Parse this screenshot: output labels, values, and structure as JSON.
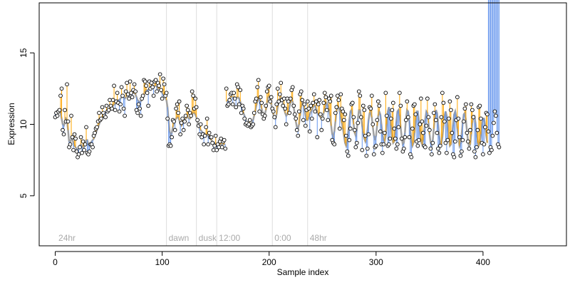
{
  "chart_data": {
    "type": "scatter",
    "title": "",
    "xlabel": "Sample index",
    "ylabel": "Expression",
    "xlim": [
      -15,
      478
    ],
    "ylim": [
      1.5,
      18.5
    ],
    "x_ticks": [
      0,
      100,
      200,
      300,
      400
    ],
    "y_ticks": [
      5,
      10,
      15
    ],
    "grid": false,
    "colors": {
      "fit_line": "#a0a0a0",
      "residual_above": "#ffa500",
      "residual_below": "#6495ed",
      "point_fill": "#ffffff",
      "point_stroke": "#000000",
      "marker_line": "#dddddd",
      "annotation_text": "#aaaaaa"
    },
    "markers": [
      {
        "x": 104,
        "label": "dawn"
      },
      {
        "x": 132,
        "label": "dusk"
      },
      {
        "x": 151,
        "label": "12:00"
      },
      {
        "x": 203,
        "label": "0:00"
      },
      {
        "x": 236,
        "label": "48hr"
      }
    ],
    "corner_label": {
      "x": 3,
      "label": "24hr"
    },
    "series": [
      {
        "x_start": 0,
        "values": [
          10.5,
          10.8,
          10.6,
          10.9,
          11.0,
          12.0,
          12.5,
          9.6,
          9.3,
          11.0,
          10.2,
          12.8,
          10.2,
          8.4,
          8.6,
          10.6,
          9.1,
          8.2,
          9.3,
          9.0,
          8.1,
          7.7,
          7.9,
          8.4,
          9.1,
          8.0,
          8.8,
          8.2,
          8.6,
          9.8,
          8.0,
          7.9,
          8.1,
          8.6,
          8.6,
          8.4,
          9.2,
          9.4,
          9.7,
          9.8,
          10.2,
          10.8,
          10.3,
          10.4,
          11.2,
          10.8,
          10.6,
          10.5,
          11.3,
          10.9,
          11.0,
          11.7,
          11.3,
          11.1,
          11.7,
          12.7,
          11.0,
          11.6,
          12.2,
          11.5,
          10.9,
          11.4,
          12.6,
          12.0,
          11.1,
          10.6,
          12.3,
          12.9,
          12.1,
          11.8,
          13.0,
          12.2,
          11.9,
          12.4,
          12.8,
          12.3,
          11.0,
          10.8,
          11.4,
          11.1,
          10.6,
          11.8,
          12.0,
          13.1,
          13.0,
          12.7,
          12.2,
          11.3,
          13.0,
          12.5,
          12.9,
          12.6,
          12.0,
          13.0,
          13.1,
          12.3,
          12.9,
          12.7,
          13.5,
          12.4,
          11.8,
          13.2,
          12.8,
          12.0,
          12.2,
          10.4,
          8.5,
          8.6,
          8.5,
          9.1,
          10.3,
          10.2,
          9.6,
          11.1,
          11.4,
          10.8,
          11.6,
          9.3,
          10.1,
          10.4,
          9.6,
          10.2,
          10.6,
          11.3,
          11.0,
          10.0,
          10.8,
          10.6,
          12.3,
          12.0,
          11.1,
          11.8,
          11.2,
          10.3,
          9.9,
          9.3,
          10.0,
          9.1,
          9.3,
          8.6,
          9.2,
          9.8,
          10.4,
          8.6,
          9.4,
          9.1,
          9.1,
          8.7,
          8.2,
          8.5,
          9.2,
          8.2,
          8.6,
          8.4,
          8.8,
          9.0,
          8.4,
          8.8,
          8.9,
          8.3,
          12.5,
          11.3,
          11.4,
          11.7,
          12.1,
          12.2,
          11.4,
          12.2,
          11.8,
          11.2,
          12.8,
          12.6,
          11.4,
          12.4,
          10.8,
          11.3,
          11.1,
          10.4,
          10.0,
          10.1,
          9.9,
          10.0,
          10.3,
          9.8,
          9.9,
          10.0,
          10.8,
          11.6,
          11.8,
          12.6,
          13.1,
          10.9,
          11.9,
          11.5,
          10.7,
          10.4,
          10.6,
          11.3,
          12.3,
          12.6,
          12.7,
          11.6,
          11.9,
          11.1,
          10.9,
          10.5,
          9.8,
          11.4,
          12.5,
          11.6,
          12.1,
          12.9,
          11.7,
          11.3,
          11.8,
          11.1,
          10.0,
          11.8,
          11.6,
          10.8,
          11.8,
          12.4,
          12.6,
          11.3,
          10.7,
          10.4,
          9.6,
          9.2,
          10.9,
          12.1,
          12.3,
          11.7,
          10.3,
          11.4,
          9.9,
          11.0,
          11.6,
          11.1,
          9.5,
          11.3,
          10.4,
          11.5,
          12.1,
          10.9,
          11.6,
          9.1,
          11.4,
          11.7,
          10.7,
          9.6,
          10.4,
          11.5,
          12.2,
          11.9,
          11.0,
          10.3,
          11.8,
          11.6,
          12.0,
          8.9,
          8.7,
          8.6,
          10.8,
          11.2,
          12.0,
          11.7,
          9.7,
          12.1,
          11.1,
          10.9,
          10.3,
          10.7,
          9.2,
          8.1,
          7.8,
          8.9,
          9.7,
          11.4,
          11.5,
          10.5,
          9.6,
          8.4,
          8.7,
          10.1,
          12.3,
          12.0,
          10.5,
          8.2,
          11.3,
          11.0,
          9.2,
          7.8,
          8.3,
          9.3,
          11.2,
          11.1,
          12.0,
          10.0,
          7.9,
          8.4,
          8.5,
          10.3,
          11.6,
          11.3,
          9.5,
          8.6,
          8.0,
          8.6,
          9.4,
          12.2,
          10.6,
          8.5,
          8.6,
          9.0,
          10.4,
          11.0,
          11.5,
          9.7,
          9.0,
          8.3,
          8.6,
          9.8,
          12.2,
          11.3,
          9.0,
          8.1,
          8.3,
          9.1,
          10.3,
          11.6,
          10.5,
          9.1,
          7.9,
          7.7,
          9.7,
          11.3,
          11.4,
          10.7,
          8.8,
          8.5,
          8.9,
          10.0,
          11.8,
          10.2,
          9.4,
          8.5,
          8.4,
          9.9,
          11.8,
          10.5,
          9.6,
          8.3,
          7.9,
          8.7,
          10.8,
          11.4,
          10.3,
          9.4,
          8.3,
          8.0,
          8.5,
          10.5,
          12.2,
          11.5,
          10.2,
          8.7,
          8.0,
          8.9,
          10.4,
          11.6,
          11.0,
          9.4,
          7.9,
          7.7,
          8.8,
          10.3,
          11.9,
          10.4,
          9.1,
          7.8,
          8.1,
          8.9,
          10.2,
          11.1,
          11.4,
          9.4,
          8.8,
          8.3,
          9.6,
          11.4,
          11.0,
          10.5,
          8.1,
          7.7,
          8.4,
          9.6,
          11.2,
          11.3,
          10.4,
          8.7,
          7.9,
          8.6,
          9.8,
          10.8,
          10.7,
          9.5,
          8.0,
          8.4,
          8.2,
          9.2,
          10.1,
          10.9,
          10.6,
          9.4,
          8.6,
          8.4
        ],
        "fit": [
          10.8,
          10.9,
          10.9,
          11.0,
          11.0,
          10.8,
          10.4,
          10.0,
          9.9,
          10.1,
          10.4,
          10.3,
          9.6,
          8.8,
          8.7,
          9.0,
          9.0,
          8.7,
          8.5,
          8.4,
          8.3,
          8.2,
          8.3,
          8.5,
          8.6,
          8.5,
          8.4,
          8.4,
          8.6,
          8.9,
          8.9,
          8.6,
          8.5,
          8.6,
          8.8,
          8.9,
          9.0,
          9.2,
          9.4,
          9.6,
          9.8,
          10.0,
          10.2,
          10.3,
          10.5,
          10.6,
          10.7,
          10.8,
          10.9,
          10.9,
          11.0,
          11.1,
          11.2,
          11.2,
          11.3,
          11.4,
          11.4,
          11.5,
          11.6,
          11.7,
          11.7,
          11.8,
          11.9,
          11.9,
          11.9,
          11.8,
          11.9,
          12.0,
          12.0,
          12.0,
          12.1,
          12.2,
          12.2,
          12.2,
          12.2,
          12.1,
          11.9,
          11.7,
          11.6,
          11.6,
          11.6,
          11.7,
          11.9,
          12.1,
          12.3,
          12.4,
          12.4,
          12.4,
          12.5,
          12.6,
          12.7,
          12.7,
          12.7,
          12.7,
          12.7,
          12.6,
          12.5,
          12.5,
          12.4,
          12.3,
          12.2,
          12.1,
          12.0,
          11.9,
          11.7,
          11.2,
          10.3,
          9.5,
          9.2,
          9.4,
          9.8,
          10.1,
          10.3,
          10.4,
          10.5,
          10.5,
          10.3,
          10.0,
          9.9,
          10.0,
          10.1,
          10.3,
          10.4,
          10.5,
          10.5,
          10.4,
          10.4,
          10.5,
          10.7,
          10.8,
          10.8,
          10.7,
          10.5,
          10.2,
          9.9,
          9.7,
          9.6,
          9.5,
          9.4,
          9.4,
          9.3,
          9.3,
          9.3,
          9.2,
          9.1,
          9.0,
          8.9,
          8.8,
          8.7,
          8.7,
          8.6,
          8.6,
          8.6,
          8.6,
          8.6,
          8.6,
          8.6,
          8.6,
          8.6,
          8.6,
          11.6,
          11.6,
          11.7,
          11.8,
          11.9,
          11.9,
          11.9,
          11.9,
          11.8,
          11.8,
          11.9,
          11.9,
          11.8,
          11.6,
          11.3,
          11.0,
          10.8,
          10.6,
          10.3,
          10.1,
          10.0,
          10.0,
          10.0,
          10.0,
          10.1,
          10.3,
          10.6,
          10.9,
          11.3,
          11.6,
          11.8,
          11.7,
          11.4,
          11.1,
          10.8,
          10.6,
          10.7,
          11.0,
          11.5,
          11.9,
          12.0,
          11.8,
          11.4,
          11.0,
          10.7,
          10.5,
          10.4,
          10.7,
          11.2,
          11.6,
          11.8,
          11.9,
          11.7,
          11.4,
          11.1,
          10.8,
          10.6,
          10.7,
          10.9,
          11.2,
          11.5,
          11.7,
          11.6,
          11.2,
          10.7,
          10.2,
          9.8,
          9.7,
          10.0,
          10.6,
          11.2,
          11.6,
          11.5,
          11.1,
          10.6,
          10.3,
          10.3,
          10.5,
          10.7,
          10.9,
          11.0,
          11.2,
          11.3,
          11.3,
          11.1,
          10.8,
          10.7,
          10.6,
          10.5,
          10.4,
          10.5,
          10.8,
          11.1,
          11.4,
          11.5,
          11.3,
          11.0,
          10.6,
          9.9,
          9.3,
          9.1,
          9.5,
          10.2,
          10.9,
          11.3,
          11.2,
          10.9,
          10.5,
          10.1,
          9.7,
          9.2,
          8.7,
          8.5,
          8.8,
          9.5,
          10.3,
          10.9,
          11.0,
          10.6,
          10.0,
          9.4,
          9.2,
          9.6,
          10.4,
          11.0,
          11.0,
          10.5,
          9.9,
          9.4,
          9.0,
          8.8,
          9.0,
          9.6,
          10.3,
          10.8,
          10.9,
          10.5,
          9.8,
          9.2,
          8.9,
          9.2,
          9.9,
          10.6,
          10.9,
          10.7,
          10.0,
          9.3,
          8.9,
          8.8,
          9.2,
          10.0,
          10.9,
          11.2,
          10.8,
          9.9,
          9.1,
          8.7,
          8.8,
          9.4,
          10.2,
          10.9,
          11.0,
          10.6,
          9.8,
          9.1,
          8.6,
          8.7,
          9.4,
          10.4,
          11.0,
          10.9,
          10.3,
          9.5,
          8.8,
          8.5,
          8.7,
          9.4,
          10.3,
          10.9,
          10.9,
          10.3,
          9.5,
          8.8,
          8.6,
          8.9,
          9.6,
          10.4,
          10.9,
          10.8,
          10.1,
          9.3,
          8.7,
          8.5,
          8.9,
          9.7,
          10.5,
          11.0,
          10.8,
          10.0,
          9.2,
          8.6,
          8.6,
          9.1,
          9.9,
          10.6,
          10.9,
          10.6,
          9.8,
          9.0,
          8.5,
          8.6,
          9.2,
          10.0,
          10.7,
          10.9,
          10.5,
          9.7,
          9.0,
          8.5,
          8.7,
          9.3,
          10.1,
          10.7,
          10.8,
          10.3,
          9.5,
          8.8,
          8.4,
          8.6,
          9.3,
          10.1,
          10.6,
          10.6,
          10.1,
          9.3,
          8.7,
          8.5,
          8.7,
          9.3,
          10.0,
          10.4,
          10.4,
          9.9,
          9.2,
          8.7
        ]
      }
    ]
  }
}
